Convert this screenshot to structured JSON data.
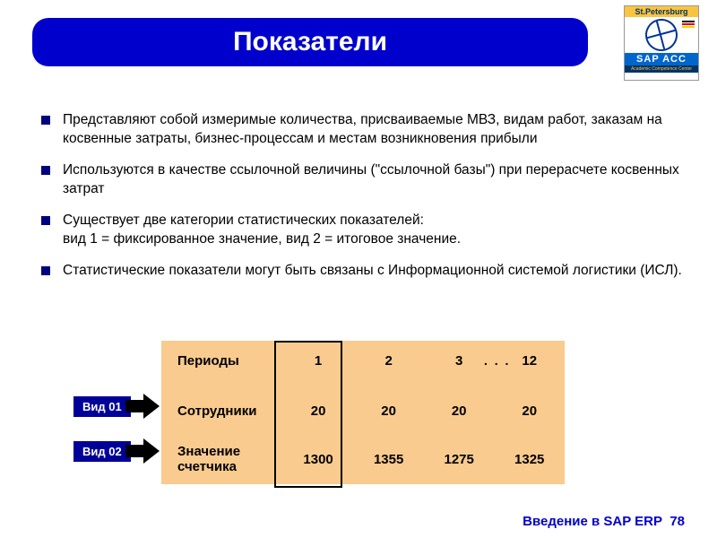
{
  "title": "Показатели",
  "logo": {
    "top": "St.Petersburg",
    "sap": "SAP  ACC",
    "sub": "Academic Competence Center",
    "stripe_colors": [
      "#000000",
      "#dd0000",
      "#ffcc00"
    ]
  },
  "bullets": [
    "Представляют собой измеримые количества, присваиваемые МВЗ, видам работ, заказам на косвенные затраты, бизнес-процессам и местам возникновения прибыли",
    "Используются в качестве ссылочной величины (\"ссылочной базы\") при перерасчете косвенных затрат",
    "Существует две категории статистических показателей:\nвид 1 = фиксированное значение, вид 2 = итоговое значение.",
    "Статистические показатели могут быть связаны с Информационной системой логистики (ИСЛ)."
  ],
  "table": {
    "background": "#f9cb8f",
    "highlight_border": "#000000",
    "ellipsis": ". . .",
    "rows": {
      "periods": {
        "label": "Периоды",
        "values": [
          "1",
          "2",
          "3",
          "12"
        ]
      },
      "employees": {
        "label": "Сотрудники",
        "values": [
          "20",
          "20",
          "20",
          "20"
        ]
      },
      "counter": {
        "label": "Значение\nсчетчика",
        "values": [
          "1300",
          "1355",
          "1275",
          "1325"
        ]
      }
    }
  },
  "type_tags": {
    "t1": "Вид 01",
    "t2": "Вид 02"
  },
  "footer": {
    "text": "Введение в SAP ERP",
    "page": "78"
  },
  "colors": {
    "title_bg": "#0000cc",
    "tag_bg": "#000099",
    "bullet_marker": "#000080",
    "footer_text": "#0000cc"
  }
}
